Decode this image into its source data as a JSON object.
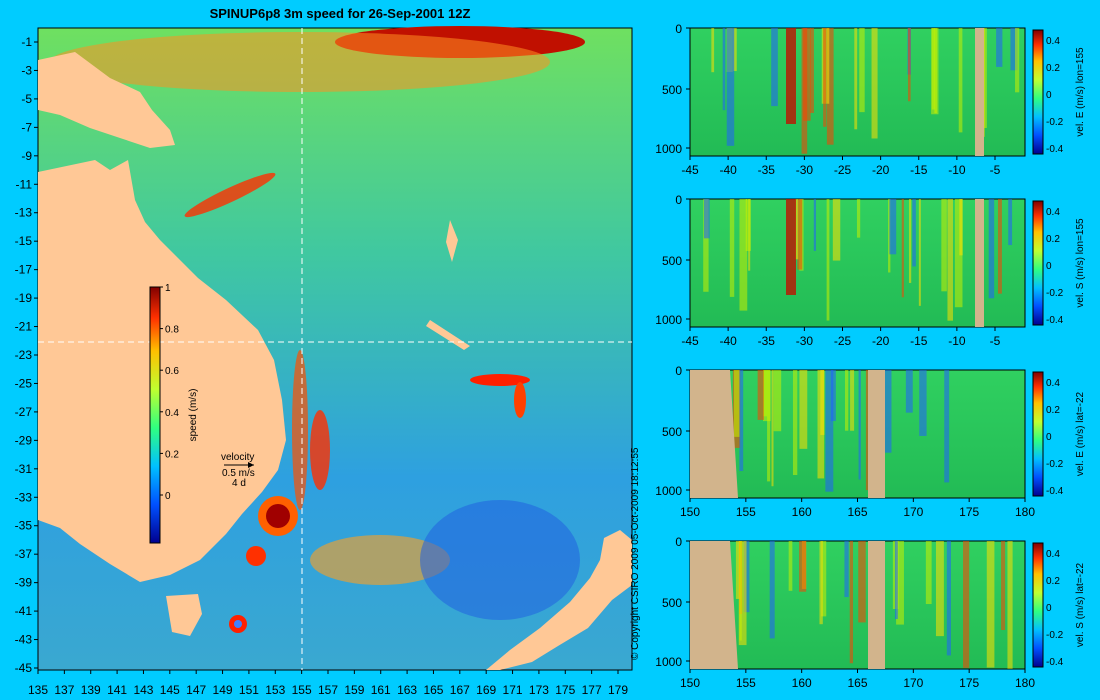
{
  "map": {
    "title": "SPINUP6p8 3m speed for 26-Sep-2001 12Z",
    "y_ticks": [
      "-1",
      "-3",
      "-5",
      "-7",
      "-9",
      "-11",
      "-13",
      "-15",
      "-17",
      "-19",
      "-21",
      "-23",
      "-25",
      "-27",
      "-29",
      "-31",
      "-33",
      "-35",
      "-37",
      "-39",
      "-41",
      "-43",
      "-45"
    ],
    "x_ticks": [
      "135",
      "137",
      "139",
      "141",
      "143",
      "145",
      "147",
      "149",
      "151",
      "153",
      "155",
      "157",
      "159",
      "161",
      "163",
      "165",
      "167",
      "169",
      "171",
      "173",
      "175",
      "177",
      "179"
    ],
    "colorbar": {
      "label": "speed (m/s)",
      "ticks": [
        "1",
        "0.8",
        "0.6",
        "0.4",
        "0.2",
        "0"
      ]
    },
    "velocity_key": {
      "title": "velocity",
      "speed": "0.5 m/s",
      "duration": "4 d"
    }
  },
  "copyright": "© Copyright CSIRO 2009  05-Oct-2009 18:12:55",
  "panels": [
    {
      "label": "vel. E (m/s) lon=155",
      "x_ticks": [
        "-45",
        "-40",
        "-35",
        "-30",
        "-25",
        "-20",
        "-15",
        "-10",
        "-5"
      ],
      "y_ticks": [
        "0",
        "500",
        "1000"
      ],
      "cb_ticks": [
        "0.4",
        "0.2",
        "0",
        "-0.2",
        "-0.4"
      ]
    },
    {
      "label": "vel. S (m/s) lon=155",
      "x_ticks": [
        "-45",
        "-40",
        "-35",
        "-30",
        "-25",
        "-20",
        "-15",
        "-10",
        "-5"
      ],
      "y_ticks": [
        "0",
        "500",
        "1000"
      ],
      "cb_ticks": [
        "0.4",
        "0.2",
        "0",
        "-0.2",
        "-0.4"
      ]
    },
    {
      "label": "vel. E (m/s) lat=-22",
      "x_ticks": [
        "150",
        "155",
        "160",
        "165",
        "170",
        "175",
        "180"
      ],
      "y_ticks": [
        "0",
        "500",
        "1000"
      ],
      "cb_ticks": [
        "0.4",
        "0.2",
        "0",
        "-0.2",
        "-0.4"
      ]
    },
    {
      "label": "vel. S (m/s) lat=-22",
      "x_ticks": [
        "150",
        "155",
        "160",
        "165",
        "170",
        "175",
        "180"
      ],
      "y_ticks": [
        "0",
        "500",
        "1000"
      ],
      "cb_ticks": [
        "0.4",
        "0.2",
        "0",
        "-0.2",
        "-0.4"
      ]
    }
  ],
  "chart_data": [
    {
      "type": "heatmap",
      "title": "SPINUP6p8 3m speed for 26-Sep-2001 12Z",
      "x": "longitude",
      "xlim": [
        135,
        180
      ],
      "ylim": [
        -45,
        0
      ],
      "colorbar_range": [
        0,
        1
      ],
      "colorbar_label": "speed (m/s)"
    },
    {
      "type": "heatmap",
      "label": "vel. E (m/s) lon=155",
      "xlim": [
        -45,
        0
      ],
      "ylim": [
        0,
        1000
      ],
      "colorbar_range": [
        -0.4,
        0.4
      ]
    },
    {
      "type": "heatmap",
      "label": "vel. S (m/s) lon=155",
      "xlim": [
        -45,
        0
      ],
      "ylim": [
        0,
        1000
      ],
      "colorbar_range": [
        -0.4,
        0.4
      ]
    },
    {
      "type": "heatmap",
      "label": "vel. E (m/s) lat=-22",
      "xlim": [
        150,
        180
      ],
      "ylim": [
        0,
        1000
      ],
      "colorbar_range": [
        -0.4,
        0.4
      ]
    },
    {
      "type": "heatmap",
      "label": "vel. S (m/s) lat=-22",
      "xlim": [
        150,
        180
      ],
      "ylim": [
        0,
        1000
      ],
      "colorbar_range": [
        -0.4,
        0.4
      ]
    }
  ],
  "colors": {
    "background": "#00ccff",
    "land": "#ffc896",
    "section_land": "#d2b48c"
  }
}
